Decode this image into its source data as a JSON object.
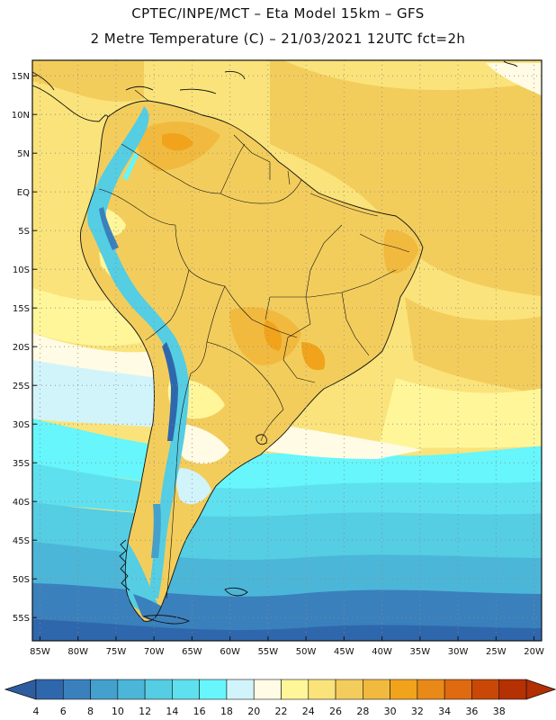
{
  "header": {
    "line1": "CPTEC/INPE/MCT –  Eta Model 15km – GFS",
    "line2": "2 Metre Temperature (C) – 21/03/2021 12UTC fct=2h"
  },
  "map": {
    "lon_range": [
      -86,
      -19
    ],
    "lat_range": [
      -58,
      17
    ],
    "lat_ticks": [
      {
        "value": 15,
        "label": "15N"
      },
      {
        "value": 10,
        "label": "10N"
      },
      {
        "value": 5,
        "label": "5N"
      },
      {
        "value": 0,
        "label": "EQ"
      },
      {
        "value": -5,
        "label": "5S"
      },
      {
        "value": -10,
        "label": "10S"
      },
      {
        "value": -15,
        "label": "15S"
      },
      {
        "value": -20,
        "label": "20S"
      },
      {
        "value": -25,
        "label": "25S"
      },
      {
        "value": -30,
        "label": "30S"
      },
      {
        "value": -35,
        "label": "35S"
      },
      {
        "value": -40,
        "label": "40S"
      },
      {
        "value": -45,
        "label": "45S"
      },
      {
        "value": -50,
        "label": "50S"
      },
      {
        "value": -55,
        "label": "55S"
      }
    ],
    "lon_ticks": [
      {
        "value": -85,
        "label": "85W"
      },
      {
        "value": -80,
        "label": "80W"
      },
      {
        "value": -75,
        "label": "75W"
      },
      {
        "value": -70,
        "label": "70W"
      },
      {
        "value": -65,
        "label": "65W"
      },
      {
        "value": -60,
        "label": "60W"
      },
      {
        "value": -55,
        "label": "55W"
      },
      {
        "value": -50,
        "label": "50W"
      },
      {
        "value": -45,
        "label": "45W"
      },
      {
        "value": -40,
        "label": "40W"
      },
      {
        "value": -35,
        "label": "35W"
      },
      {
        "value": -30,
        "label": "30W"
      },
      {
        "value": -25,
        "label": "25W"
      },
      {
        "value": -20,
        "label": "20W"
      }
    ],
    "grid": true
  },
  "colorbar": {
    "labels": [
      "4",
      "6",
      "8",
      "10",
      "12",
      "14",
      "16",
      "18",
      "20",
      "22",
      "24",
      "26",
      "28",
      "30",
      "32",
      "34",
      "36",
      "38"
    ],
    "colors": [
      "#2f67ad",
      "#3a80bc",
      "#44a0cc",
      "#4cb6d8",
      "#55cde3",
      "#5fe0ee",
      "#66f6fb",
      "#d1f4fb",
      "#fffbe4",
      "#fff69a",
      "#fae37a",
      "#f3cd5c",
      "#f1ba3e",
      "#f2a31c",
      "#e98917",
      "#df6a0f",
      "#c94806",
      "#b53003"
    ],
    "low_color": "#2e5d9f",
    "high_color": "#b22f04"
  }
}
